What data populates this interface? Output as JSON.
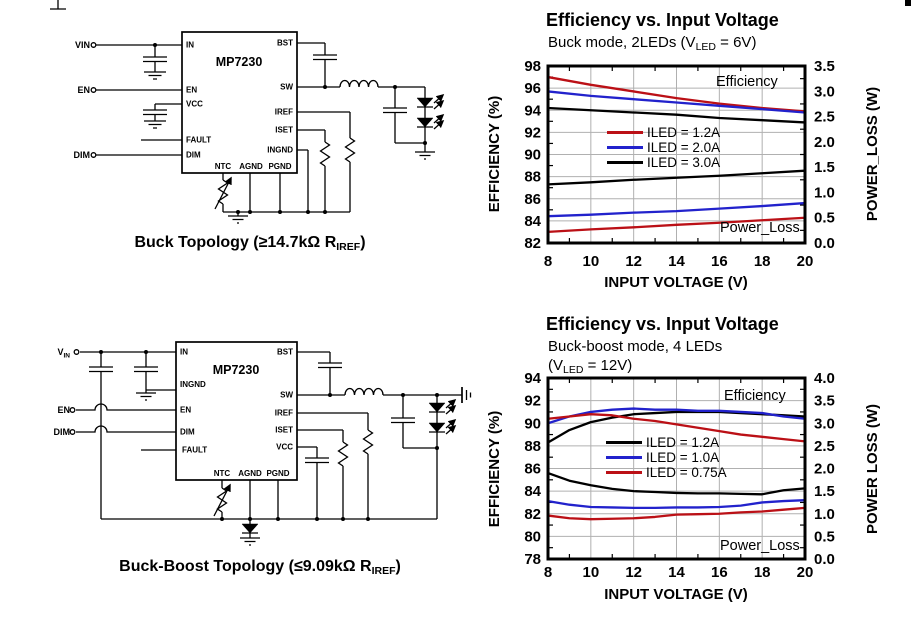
{
  "circuits": [
    {
      "name": "buck",
      "ic": "MP7230",
      "terminals": [
        {
          "label": "VIN",
          "sub": ""
        },
        {
          "label": "EN",
          "sub": ""
        },
        {
          "label": "DIM",
          "sub": ""
        }
      ],
      "pins_left": [
        "IN",
        "EN",
        "VCC",
        "FAULT",
        "DIM"
      ],
      "pins_right": [
        "BST",
        "SW",
        "IREF",
        "ISET",
        "INGND"
      ],
      "pins_bottom": [
        "NTC",
        "AGND",
        "PGND"
      ],
      "caption": {
        "pre": "Buck Topology (≥14.7kΩ R",
        "sub": "IREF",
        "post": ")"
      }
    },
    {
      "name": "buck-boost",
      "ic": "MP7230",
      "terminals": [
        {
          "label": "V",
          "sub": "IN"
        },
        {
          "label": "EN",
          "sub": ""
        },
        {
          "label": "DIM",
          "sub": ""
        }
      ],
      "pins_left": [
        "IN",
        "INGND",
        "EN",
        "DIM",
        "FAULT"
      ],
      "pins_right": [
        "BST",
        "SW",
        "IREF",
        "ISET",
        "VCC"
      ],
      "pins_bottom": [
        "NTC",
        "AGND",
        "PGND"
      ],
      "caption": {
        "pre": "Buck-Boost Topology (≤9.09kΩ R",
        "sub": "IREF",
        "post": ")"
      }
    }
  ],
  "chart_data": [
    {
      "type": "line",
      "title": "Efficiency vs. Input Voltage",
      "subtitle": [
        {
          "pre": "Buck mode, 2LEDs (V",
          "sub": "LED",
          "post": " = 6V)"
        }
      ],
      "xlabel": "INPUT VOLTAGE (V)",
      "ylabel_left": "EFFICIENCY (%)",
      "ylabel_right": "POWER_LOSS (W)",
      "annotation_top": "Efficiency",
      "annotation_bottom": "Power_Loss",
      "xlim": [
        8,
        20
      ],
      "x_ticks": [
        8,
        10,
        12,
        14,
        16,
        18,
        20
      ],
      "ylim_left": [
        82,
        98
      ],
      "yticks_left": [
        82,
        84,
        86,
        88,
        90,
        92,
        94,
        96,
        98
      ],
      "ylim_right": [
        0,
        3.5
      ],
      "yticks_right": [
        0.0,
        0.5,
        1.0,
        1.5,
        2.0,
        2.5,
        3.0,
        3.5
      ],
      "legend": [
        {
          "label": "ILED = 1.2A",
          "color": "#bb1016"
        },
        {
          "label": "ILED = 2.0A",
          "color": "#2222cc"
        },
        {
          "label": "ILED = 3.0A",
          "color": "#000000"
        }
      ],
      "x": [
        8,
        10,
        12,
        14,
        16,
        18,
        20
      ],
      "series": [
        {
          "name": "ILED = 1.2A efficiency",
          "axis": "left",
          "color": "#bb1016",
          "values": [
            97.0,
            96.3,
            95.7,
            95.1,
            94.6,
            94.2,
            93.9
          ]
        },
        {
          "name": "ILED = 2.0A efficiency",
          "axis": "left",
          "color": "#2222cc",
          "values": [
            95.7,
            95.3,
            95.0,
            94.7,
            94.4,
            94.1,
            93.8
          ]
        },
        {
          "name": "ILED = 3.0A efficiency",
          "axis": "left",
          "color": "#000000",
          "values": [
            94.2,
            94.0,
            93.8,
            93.6,
            93.3,
            93.1,
            92.9
          ]
        },
        {
          "name": "ILED = 1.2A power loss",
          "axis": "right",
          "color": "#bb1016",
          "values": [
            0.22,
            0.27,
            0.31,
            0.36,
            0.4,
            0.45,
            0.5
          ]
        },
        {
          "name": "ILED = 2.0A power loss",
          "axis": "right",
          "color": "#2222cc",
          "values": [
            0.53,
            0.56,
            0.6,
            0.63,
            0.68,
            0.73,
            0.79
          ]
        },
        {
          "name": "ILED = 3.0A power loss",
          "axis": "right",
          "color": "#000000",
          "values": [
            1.16,
            1.2,
            1.25,
            1.29,
            1.33,
            1.38,
            1.43
          ]
        }
      ]
    },
    {
      "type": "line",
      "title": "Efficiency vs. Input Voltage",
      "subtitle": [
        {
          "pre": "Buck-boost mode, 4 LEDs",
          "sub": "",
          "post": ""
        },
        {
          "pre": "(V",
          "sub": "LED",
          "post": " = 12V)"
        }
      ],
      "xlabel": "INPUT VOLTAGE (V)",
      "ylabel_left": "EFFICIENCY (%)",
      "ylabel_right": "POWER LOSS (W)",
      "annotation_top": "Efficiency",
      "annotation_bottom": "Power_Loss",
      "xlim": [
        8,
        20
      ],
      "x_ticks": [
        8,
        10,
        12,
        14,
        16,
        18,
        20
      ],
      "ylim_left": [
        78,
        94
      ],
      "yticks_left": [
        78,
        80,
        82,
        84,
        86,
        88,
        90,
        92,
        94
      ],
      "ylim_right": [
        0,
        4.0
      ],
      "yticks_right": [
        0.0,
        0.5,
        1.0,
        1.5,
        2.0,
        2.5,
        3.0,
        3.5,
        4.0
      ],
      "legend": [
        {
          "label": "ILED = 1.2A",
          "color": "#000000"
        },
        {
          "label": "ILED = 1.0A",
          "color": "#2222cc"
        },
        {
          "label": "ILED = 0.75A",
          "color": "#bb1016"
        }
      ],
      "x": [
        8,
        9,
        10,
        11,
        12,
        13,
        14,
        15,
        16,
        17,
        18,
        19,
        20
      ],
      "series": [
        {
          "name": "ILED = 1.2A efficiency",
          "axis": "left",
          "color": "#000000",
          "values": [
            88.3,
            89.4,
            90.1,
            90.5,
            90.8,
            90.9,
            91.0,
            91.0,
            91.0,
            90.9,
            90.8,
            90.7,
            90.6
          ]
        },
        {
          "name": "ILED = 1.0A efficiency",
          "axis": "left",
          "color": "#2222cc",
          "values": [
            90.0,
            90.6,
            91.0,
            91.2,
            91.3,
            91.2,
            91.2,
            91.1,
            91.1,
            91.0,
            90.9,
            90.6,
            90.4
          ]
        },
        {
          "name": "ILED = 0.75A efficiency",
          "axis": "left",
          "color": "#bb1016",
          "values": [
            90.4,
            90.6,
            90.8,
            90.7,
            90.4,
            90.2,
            89.9,
            89.6,
            89.3,
            89.0,
            88.8,
            88.6,
            88.4
          ]
        },
        {
          "name": "ILED = 1.2A power loss",
          "axis": "right",
          "color": "#000000",
          "values": [
            1.9,
            1.73,
            1.63,
            1.55,
            1.5,
            1.48,
            1.46,
            1.45,
            1.45,
            1.44,
            1.43,
            1.52,
            1.56
          ]
        },
        {
          "name": "ILED = 1.0A power loss",
          "axis": "right",
          "color": "#2222cc",
          "values": [
            1.28,
            1.2,
            1.15,
            1.14,
            1.13,
            1.13,
            1.14,
            1.14,
            1.15,
            1.18,
            1.25,
            1.28,
            1.3
          ]
        },
        {
          "name": "ILED = 0.75A power loss",
          "axis": "right",
          "color": "#bb1016",
          "values": [
            0.96,
            0.9,
            0.88,
            0.89,
            0.9,
            0.93,
            0.98,
            0.99,
            1.0,
            1.03,
            1.05,
            1.09,
            1.13
          ]
        }
      ]
    }
  ]
}
